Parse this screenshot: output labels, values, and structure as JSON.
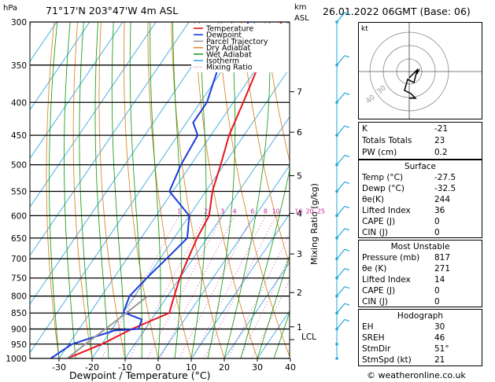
{
  "header": {
    "hpa_label": "hPa",
    "location": "71°17'N  203°47'W  4m  ASL",
    "km_label": "km",
    "asl_label": "ASL",
    "datetime": "26.01.2022  06GMT  (Base: 06)"
  },
  "legend": [
    {
      "label": "Temperature",
      "color": "#e8141e"
    },
    {
      "label": "Dewpoint",
      "color": "#1e3cdc"
    },
    {
      "label": "Parcel Trajectory",
      "color": "#999999"
    },
    {
      "label": "Dry Adiabat",
      "color": "#d98a2b"
    },
    {
      "label": "Wet Adiabat",
      "color": "#22a022"
    },
    {
      "label": "Isotherm",
      "color": "#3ba7e0"
    },
    {
      "label": "Mixing Ratio",
      "color": "#d020a0"
    }
  ],
  "colors": {
    "temperature": "#e8141e",
    "dewpoint": "#1e3cdc",
    "parcel": "#999999",
    "dry_adiabat": "#d98a2b",
    "wet_adiabat": "#22a022",
    "isotherm": "#3ba7e0",
    "mixing_ratio": "#d020a0",
    "wind_barb": "#1ca8d8"
  },
  "axes": {
    "xlabel": "Dewpoint / Temperature (°C)",
    "right_ylabel": "Mixing Ratio (g/kg)",
    "lcl_label": "LCL"
  },
  "chart_data": {
    "type": "line",
    "pressure_levels": [
      300,
      350,
      400,
      450,
      500,
      550,
      600,
      650,
      700,
      750,
      800,
      850,
      900,
      950,
      1000
    ],
    "temperature_ticks": [
      -30,
      -20,
      -10,
      0,
      10,
      20,
      30,
      40
    ],
    "xlim": [
      -35,
      40
    ],
    "ylim": [
      1000,
      300
    ],
    "height_km_ticks": [
      {
        "label": "7",
        "p": 385
      },
      {
        "label": "6",
        "p": 445
      },
      {
        "label": "5",
        "p": 520
      },
      {
        "label": "4",
        "p": 595
      },
      {
        "label": "3",
        "p": 688
      },
      {
        "label": "2",
        "p": 790
      },
      {
        "label": "1",
        "p": 893
      }
    ],
    "lcl_p": 935,
    "mixing_ratio_labels": [
      "1",
      "2",
      "3",
      "4",
      "6",
      "8",
      "10",
      "16",
      "20",
      "25"
    ],
    "series": [
      {
        "name": "Temperature",
        "points": [
          [
            -32,
            300
          ],
          [
            -30,
            350
          ],
          [
            -27,
            400
          ],
          [
            -24.5,
            450
          ],
          [
            -21,
            500
          ],
          [
            -18,
            550
          ],
          [
            -14,
            600
          ],
          [
            -13,
            650
          ],
          [
            -11.5,
            700
          ],
          [
            -10,
            750
          ],
          [
            -8,
            800
          ],
          [
            -6,
            850
          ],
          [
            -14,
            900
          ],
          [
            -20,
            950
          ],
          [
            -27.5,
            1000
          ]
        ]
      },
      {
        "name": "Dewpoint",
        "points": [
          [
            -42,
            300
          ],
          [
            -40,
            340
          ],
          [
            -42,
            350
          ],
          [
            -38,
            400
          ],
          [
            -38,
            430
          ],
          [
            -34,
            450
          ],
          [
            -33,
            500
          ],
          [
            -31,
            550
          ],
          [
            -20,
            600
          ],
          [
            -16,
            650
          ],
          [
            -18,
            700
          ],
          [
            -20,
            750
          ],
          [
            -21.5,
            800
          ],
          [
            -20,
            848
          ],
          [
            -13,
            870
          ],
          [
            -12,
            900
          ],
          [
            -19,
            905
          ],
          [
            -29,
            950
          ],
          [
            -32.5,
            1000
          ]
        ]
      },
      {
        "name": "Parcel Trajectory",
        "points": [
          [
            -27.5,
            1000
          ],
          [
            -25,
            950
          ],
          [
            -22,
            900
          ],
          [
            -19,
            850
          ],
          [
            -16,
            800
          ]
        ]
      }
    ]
  },
  "indices": {
    "rows": [
      {
        "label": "K",
        "value": "-21"
      },
      {
        "label": "Totals Totals",
        "value": "23"
      },
      {
        "label": "PW (cm)",
        "value": "0.2"
      }
    ],
    "surface": {
      "title": "Surface",
      "rows": [
        {
          "label": "Temp (°C)",
          "value": "-27.5"
        },
        {
          "label": "Dewp (°C)",
          "value": "-32.5"
        },
        {
          "label": "θe(K)",
          "value": "244"
        },
        {
          "label": "Lifted Index",
          "value": "36"
        },
        {
          "label": "CAPE (J)",
          "value": "0"
        },
        {
          "label": "CIN (J)",
          "value": "0"
        }
      ]
    },
    "most_unstable": {
      "title": "Most Unstable",
      "rows": [
        {
          "label": "Pressure (mb)",
          "value": "817"
        },
        {
          "label": "θe (K)",
          "value": "271"
        },
        {
          "label": "Lifted Index",
          "value": "14"
        },
        {
          "label": "CAPE (J)",
          "value": "0"
        },
        {
          "label": "CIN (J)",
          "value": "0"
        }
      ]
    },
    "hodograph": {
      "title": "Hodograph",
      "rows": [
        {
          "label": "EH",
          "value": "30"
        },
        {
          "label": "SREH",
          "value": "46"
        },
        {
          "label": "StmDir",
          "value": "51°"
        },
        {
          "label": "StmSpd (kt)",
          "value": "21"
        }
      ]
    }
  },
  "hodo": {
    "kt_label": "kt",
    "ring_labels": [
      "40",
      "30"
    ]
  },
  "footer": {
    "copyright": "© weatheronline.co.uk"
  }
}
